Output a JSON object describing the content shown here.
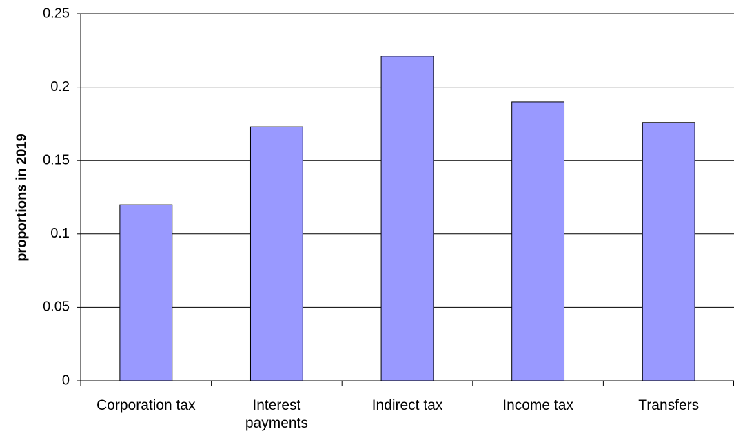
{
  "chart_data": {
    "type": "bar",
    "y_label": "proportions in 2019",
    "categories": [
      "Corporation tax",
      "Interest payments",
      "Indirect tax",
      "Income tax",
      "Transfers"
    ],
    "values": [
      0.12,
      0.173,
      0.221,
      0.19,
      0.176
    ],
    "color": "#9999ff",
    "ylim": [
      0,
      0.25
    ],
    "yticks": [
      0,
      0.05,
      0.1,
      0.15,
      0.2,
      0.25
    ],
    "grid": true
  }
}
